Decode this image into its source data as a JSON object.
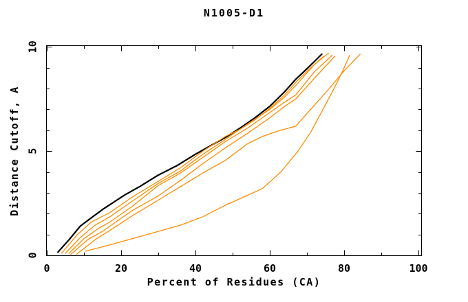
{
  "chart_data": {
    "type": "line",
    "title": "N1005-D1",
    "xlabel": "Percent of Residues (CA)",
    "ylabel": "Distance Cutoff, A",
    "xlim": [
      0,
      100
    ],
    "ylim": [
      0,
      10
    ],
    "grid": false,
    "legend": "none",
    "x_major_ticks": [
      0,
      20,
      40,
      60,
      80,
      100
    ],
    "x_tick_labels": [
      "0",
      "20",
      "40",
      "60",
      "80",
      "100"
    ],
    "x_minor_ticks": [
      10,
      30,
      50,
      70,
      90
    ],
    "y_major_ticks": [
      0,
      5,
      10
    ],
    "y_tick_labels": [
      "0",
      "5",
      "10"
    ],
    "y_minor_ticks": [
      1,
      2,
      3,
      4,
      6,
      7,
      8,
      9
    ],
    "colors": {
      "background": "#ffffff",
      "frame": "#000000",
      "reference_curve": "#000000",
      "comparison_curves": "#ff8c00"
    },
    "series": [
      {
        "name": "series_black",
        "color": "#000000",
        "width": 2.2,
        "points": [
          [
            3,
            0.15
          ],
          [
            6,
            0.75
          ],
          [
            9,
            1.4
          ],
          [
            12,
            1.8
          ],
          [
            15,
            2.2
          ],
          [
            18,
            2.55
          ],
          [
            21,
            2.9
          ],
          [
            25,
            3.3
          ],
          [
            30,
            3.85
          ],
          [
            35,
            4.3
          ],
          [
            40,
            4.85
          ],
          [
            45,
            5.35
          ],
          [
            48,
            5.65
          ],
          [
            52,
            6.1
          ],
          [
            56,
            6.6
          ],
          [
            60,
            7.15
          ],
          [
            64,
            7.85
          ],
          [
            67,
            8.45
          ],
          [
            70,
            8.95
          ],
          [
            72,
            9.3
          ],
          [
            74,
            9.65
          ]
        ]
      },
      {
        "name": "series_orange_1",
        "color": "#ff8c00",
        "width": 1.3,
        "points": [
          [
            4,
            0.1
          ],
          [
            8,
            0.95
          ],
          [
            12,
            1.6
          ],
          [
            17,
            2.05
          ],
          [
            23,
            2.8
          ],
          [
            30,
            3.55
          ],
          [
            36,
            4.2
          ],
          [
            42,
            5.0
          ],
          [
            48,
            5.7
          ],
          [
            52,
            6.05
          ],
          [
            56,
            6.5
          ],
          [
            60,
            7.05
          ],
          [
            64,
            7.7
          ],
          [
            67,
            8.3
          ],
          [
            71,
            9.0
          ],
          [
            74.5,
            9.55
          ]
        ]
      },
      {
        "name": "series_orange_2",
        "color": "#ff8c00",
        "width": 1.3,
        "points": [
          [
            5,
            0.1
          ],
          [
            9,
            0.85
          ],
          [
            13,
            1.45
          ],
          [
            17,
            1.85
          ],
          [
            23,
            2.6
          ],
          [
            30,
            3.45
          ],
          [
            36,
            4.05
          ],
          [
            42,
            4.85
          ],
          [
            48,
            5.55
          ],
          [
            54,
            6.3
          ],
          [
            60,
            7.0
          ],
          [
            64,
            7.6
          ],
          [
            67,
            8.15
          ],
          [
            72,
            9.15
          ],
          [
            75.8,
            9.7
          ]
        ]
      },
      {
        "name": "series_orange_3",
        "color": "#ff8c00",
        "width": 1.3,
        "points": [
          [
            6,
            0.1
          ],
          [
            10,
            0.8
          ],
          [
            14,
            1.3
          ],
          [
            17,
            1.6
          ],
          [
            23,
            2.35
          ],
          [
            30,
            3.35
          ],
          [
            36,
            3.95
          ],
          [
            42,
            4.7
          ],
          [
            48,
            5.45
          ],
          [
            54,
            6.1
          ],
          [
            60,
            6.85
          ],
          [
            64,
            7.35
          ],
          [
            67,
            7.7
          ],
          [
            72,
            8.8
          ],
          [
            76.8,
            9.6
          ]
        ]
      },
      {
        "name": "series_orange_4",
        "color": "#ff8c00",
        "width": 1.3,
        "points": [
          [
            6.5,
            0.05
          ],
          [
            11,
            0.75
          ],
          [
            15,
            1.15
          ],
          [
            17,
            1.4
          ],
          [
            23,
            2.15
          ],
          [
            30,
            2.85
          ],
          [
            36,
            3.6
          ],
          [
            42,
            4.4
          ],
          [
            48,
            5.15
          ],
          [
            54,
            5.85
          ],
          [
            60,
            6.6
          ],
          [
            64,
            7.15
          ],
          [
            67,
            7.5
          ],
          [
            72,
            8.5
          ],
          [
            77.5,
            9.55
          ]
        ]
      },
      {
        "name": "series_orange_5",
        "color": "#ff8c00",
        "width": 1.3,
        "points": [
          [
            8,
            0.05
          ],
          [
            13,
            0.75
          ],
          [
            17,
            1.2
          ],
          [
            23,
            1.9
          ],
          [
            30,
            2.65
          ],
          [
            36,
            3.3
          ],
          [
            42,
            3.95
          ],
          [
            48,
            4.55
          ],
          [
            54,
            5.35
          ],
          [
            58,
            5.7
          ],
          [
            62,
            5.95
          ],
          [
            67,
            6.2
          ],
          [
            72,
            7.2
          ],
          [
            76,
            8.0
          ],
          [
            80,
            8.85
          ],
          [
            84.3,
            9.65
          ]
        ]
      },
      {
        "name": "series_orange_6",
        "color": "#ff8c00",
        "width": 1.3,
        "points": [
          [
            10.5,
            0.2
          ],
          [
            17,
            0.5
          ],
          [
            23,
            0.8
          ],
          [
            30,
            1.15
          ],
          [
            36,
            1.45
          ],
          [
            42,
            1.85
          ],
          [
            48,
            2.4
          ],
          [
            53,
            2.8
          ],
          [
            58,
            3.2
          ],
          [
            63,
            4.0
          ],
          [
            67.6,
            5.0
          ],
          [
            71,
            5.9
          ],
          [
            74,
            6.9
          ],
          [
            77,
            7.9
          ],
          [
            79.5,
            8.8
          ],
          [
            81.5,
            9.6
          ]
        ]
      }
    ]
  }
}
